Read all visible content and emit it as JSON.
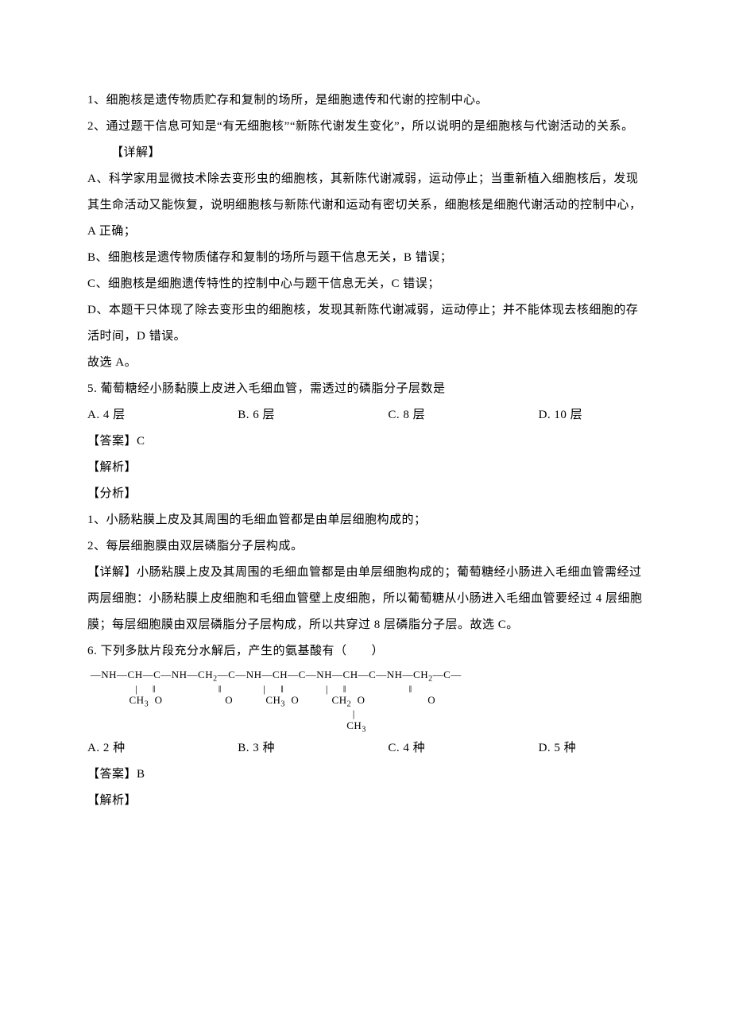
{
  "page": {
    "text_color": "#000000",
    "background_color": "#ffffff",
    "font_size_pt": 11,
    "line_height": 2.2
  },
  "lines": {
    "l1": "1、细胞核是遗传物质贮存和复制的场所，是细胞遗传和代谢的控制中心。",
    "l2": "2、通过题干信息可知是“有无细胞核”“新陈代谢发生变化”，所以说明的是细胞核与代谢活动的关系。",
    "l3": "【详解】",
    "l4": "A、科学家用显微技术除去变形虫的细胞核，其新陈代谢减弱，运动停止；当重新植入细胞核后，发现其生命活动又能恢复，说明细胞核与新陈代谢和运动有密切关系，细胞核是细胞代谢活动的控制中心，A 正确；",
    "l5": "B、细胞核是遗传物质储存和复制的场所与题干信息无关，B 错误；",
    "l6": "C、细胞核是细胞遗传特性的控制中心与题干信息无关，C 错误；",
    "l7": "D、本题干只体现了除去变形虫的细胞核，发现其新陈代谢减弱，运动停止；并不能体现去核细胞的存活时间，D 错误。",
    "l8": "故选 A。",
    "q5": {
      "stem": "5. 葡萄糖经小肠黏膜上皮进入毛细血管，需透过的磷脂分子层数是",
      "A": "A. 4 层",
      "B": "B. 6 层",
      "C": "C. 8 层",
      "D": "D. 10 层",
      "answer": "【答案】C",
      "exp_label": "【解析】",
      "ana_label": "【分析】",
      "ana1": "1、小肠粘膜上皮及其周围的毛细血管都是由单层细胞构成的；",
      "ana2": "2、每层细胞膜由双层磷脂分子层构成。",
      "detail": "【详解】小肠粘膜上皮及其周围的毛细血管都是由单层细胞构成的；葡萄糖经小肠进入毛细血管需经过两层细胞：小肠粘膜上皮细胞和毛细血管壁上皮细胞，所以葡萄糖从小肠进入毛细血管要经过 4 层细胞膜；每层细胞膜由双层磷脂分子层构成，所以共穿过 8 层磷脂分子层。故选 C。"
    },
    "q6": {
      "stem": "6. 下列多肽片段充分水解后，产生的氨基酸有（　　）",
      "A": "A. 2 种",
      "B": "B. 3 种",
      "C": "C. 4 种",
      "D": "D. 5 种",
      "answer": "【答案】B",
      "exp_label": "【解析】"
    }
  },
  "chem": {
    "line1": "—NH—CH—C—NH—CH₂—C—NH—CH—C—NH—CH—C—NH—CH₂—C—",
    "line2_left": "CH₃ O",
    "line2_mid1": "O",
    "line2_mid2": "CH₃ O",
    "line2_mid3": "CH₂ O",
    "line2_right": "O",
    "line3": "CH₃"
  }
}
